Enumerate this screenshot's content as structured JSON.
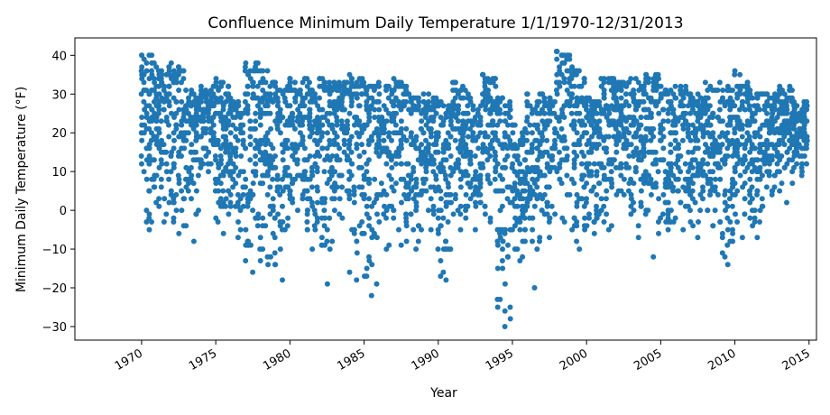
{
  "chart_data": {
    "type": "scatter",
    "title": "Confluence Minimum Daily Temperature 1/1/1970-12/31/2013",
    "xlabel": "Year",
    "ylabel": "Minimum Daily Temperature (°F)",
    "xlim": [
      1965.5,
      2015.5
    ],
    "ylim": [
      -33.5,
      44.5
    ],
    "x_ticks": [
      1970,
      1975,
      1980,
      1985,
      1990,
      1995,
      2000,
      2005,
      2010,
      2015
    ],
    "x_tick_labels": [
      "1970",
      "1975",
      "1980",
      "1985",
      "1990",
      "1995",
      "2000",
      "2005",
      "2010",
      "2015"
    ],
    "y_ticks": [
      -30,
      -20,
      -10,
      0,
      10,
      20,
      30,
      40
    ],
    "y_tick_labels": [
      "−30",
      "−20",
      "−10",
      "0",
      "10",
      "20",
      "30",
      "40"
    ],
    "grid": false,
    "marker_color": "#1f77b4",
    "year_ranges": [
      {
        "year": 1970,
        "min": -5,
        "max": 40
      },
      {
        "year": 1971,
        "min": -3,
        "max": 37
      },
      {
        "year": 1972,
        "min": -6,
        "max": 38
      },
      {
        "year": 1973,
        "min": -8,
        "max": 31
      },
      {
        "year": 1974,
        "min": 10,
        "max": 32
      },
      {
        "year": 1975,
        "min": -6,
        "max": 34
      },
      {
        "year": 1976,
        "min": -7,
        "max": 29
      },
      {
        "year": 1977,
        "min": -16,
        "max": 38
      },
      {
        "year": 1978,
        "min": -14,
        "max": 36
      },
      {
        "year": 1979,
        "min": -18,
        "max": 33
      },
      {
        "year": 1980,
        "min": 0,
        "max": 34
      },
      {
        "year": 1981,
        "min": -10,
        "max": 34
      },
      {
        "year": 1982,
        "min": -19,
        "max": 34
      },
      {
        "year": 1983,
        "min": -2,
        "max": 33
      },
      {
        "year": 1984,
        "min": -18,
        "max": 35
      },
      {
        "year": 1985,
        "min": -22,
        "max": 33
      },
      {
        "year": 1986,
        "min": -10,
        "max": 33
      },
      {
        "year": 1987,
        "min": -9,
        "max": 34
      },
      {
        "year": 1988,
        "min": -10,
        "max": 30
      },
      {
        "year": 1989,
        "min": -5,
        "max": 30
      },
      {
        "year": 1990,
        "min": -18,
        "max": 28
      },
      {
        "year": 1991,
        "min": -5,
        "max": 33
      },
      {
        "year": 1992,
        "min": -5,
        "max": 30
      },
      {
        "year": 1993,
        "min": -3,
        "max": 35
      },
      {
        "year": 1994,
        "min": -30,
        "max": 29
      },
      {
        "year": 1995,
        "min": -13,
        "max": 22
      },
      {
        "year": 1996,
        "min": -20,
        "max": 30
      },
      {
        "year": 1997,
        "min": -7,
        "max": 30
      },
      {
        "year": 1998,
        "min": -3,
        "max": 41
      },
      {
        "year": 1999,
        "min": -10,
        "max": 37
      },
      {
        "year": 2000,
        "min": -6,
        "max": 29
      },
      {
        "year": 2001,
        "min": -5,
        "max": 34
      },
      {
        "year": 2002,
        "min": 4,
        "max": 33
      },
      {
        "year": 2003,
        "min": -7,
        "max": 34
      },
      {
        "year": 2004,
        "min": -12,
        "max": 35
      },
      {
        "year": 2005,
        "min": -5,
        "max": 32
      },
      {
        "year": 2006,
        "min": -5,
        "max": 32
      },
      {
        "year": 2007,
        "min": -7,
        "max": 30
      },
      {
        "year": 2008,
        "min": -4,
        "max": 33
      },
      {
        "year": 2009,
        "min": -14,
        "max": 33
      },
      {
        "year": 2010,
        "min": -7,
        "max": 36
      },
      {
        "year": 2011,
        "min": -7,
        "max": 31
      },
      {
        "year": 2012,
        "min": 4,
        "max": 30
      },
      {
        "year": 2013,
        "min": 2,
        "max": 32
      },
      {
        "year": 2014,
        "min": 9,
        "max": 28
      }
    ]
  }
}
